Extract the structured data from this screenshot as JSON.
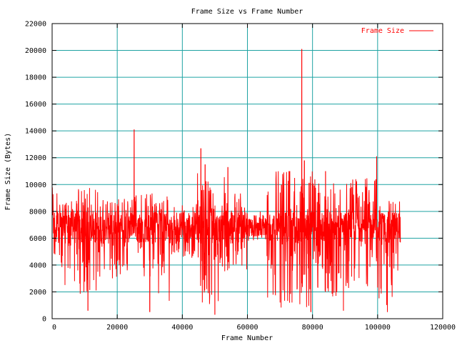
{
  "chart_data": {
    "type": "line",
    "title": "Frame Size vs Frame Number",
    "xlabel": "Frame Number",
    "ylabel": "Frame Size (Bytes)",
    "xlim": [
      0,
      120000
    ],
    "ylim": [
      0,
      22000
    ],
    "xticks": [
      0,
      20000,
      40000,
      60000,
      80000,
      100000,
      120000
    ],
    "xtick_labels": [
      "0",
      "20000",
      "40000",
      "60000",
      "80000",
      "100000",
      "120000"
    ],
    "yticks": [
      0,
      2000,
      4000,
      6000,
      8000,
      10000,
      12000,
      14000,
      16000,
      18000,
      20000,
      22000
    ],
    "ytick_labels": [
      "0",
      "2000",
      "4000",
      "6000",
      "8000",
      "10000",
      "12000",
      "14000",
      "16000",
      "18000",
      "20000",
      "22000"
    ],
    "grid": true,
    "legend_position": "top-right",
    "colors": {
      "series": "#ff0000",
      "grid": "#1fa3a3",
      "axis": "#000000"
    },
    "series": [
      {
        "name": "Frame Size",
        "color": "#ff0000",
        "x_start": 0,
        "x_end": 107000,
        "baseline": 6800,
        "segments": [
          {
            "from": 0,
            "to": 2000,
            "low": 4500,
            "high": 9800
          },
          {
            "from": 2000,
            "to": 8000,
            "low": 2500,
            "high": 8800
          },
          {
            "from": 8000,
            "to": 14000,
            "low": 800,
            "high": 9800
          },
          {
            "from": 14000,
            "to": 25000,
            "low": 3000,
            "high": 9000
          },
          {
            "from": 25000,
            "to": 32000,
            "low": 3000,
            "high": 9500
          },
          {
            "from": 32000,
            "to": 36000,
            "low": 1000,
            "high": 9200
          },
          {
            "from": 36000,
            "to": 44000,
            "low": 4500,
            "high": 8500
          },
          {
            "from": 44000,
            "to": 53000,
            "low": 500,
            "high": 11000
          },
          {
            "from": 53000,
            "to": 60000,
            "low": 3500,
            "high": 9500
          },
          {
            "from": 60000,
            "to": 66000,
            "low": 6000,
            "high": 7500
          },
          {
            "from": 66000,
            "to": 80000,
            "low": 800,
            "high": 11000
          },
          {
            "from": 80000,
            "to": 88000,
            "low": 1500,
            "high": 10500
          },
          {
            "from": 88000,
            "to": 100000,
            "low": 2000,
            "high": 10500
          },
          {
            "from": 100000,
            "to": 107000,
            "low": 1000,
            "high": 9000
          }
        ],
        "peaks": [
          {
            "x": 25200,
            "y": 14100
          },
          {
            "x": 45700,
            "y": 12700
          },
          {
            "x": 47000,
            "y": 11500
          },
          {
            "x": 54000,
            "y": 11300
          },
          {
            "x": 76700,
            "y": 20100
          },
          {
            "x": 77500,
            "y": 11800
          },
          {
            "x": 99700,
            "y": 12100
          },
          {
            "x": 73000,
            "y": 11000
          },
          {
            "x": 84000,
            "y": 11000
          },
          {
            "x": 11000,
            "y": 600
          },
          {
            "x": 30000,
            "y": 500
          },
          {
            "x": 50000,
            "y": 300
          },
          {
            "x": 79500,
            "y": 500
          },
          {
            "x": 89500,
            "y": 600
          },
          {
            "x": 103000,
            "y": 500
          }
        ]
      }
    ]
  }
}
